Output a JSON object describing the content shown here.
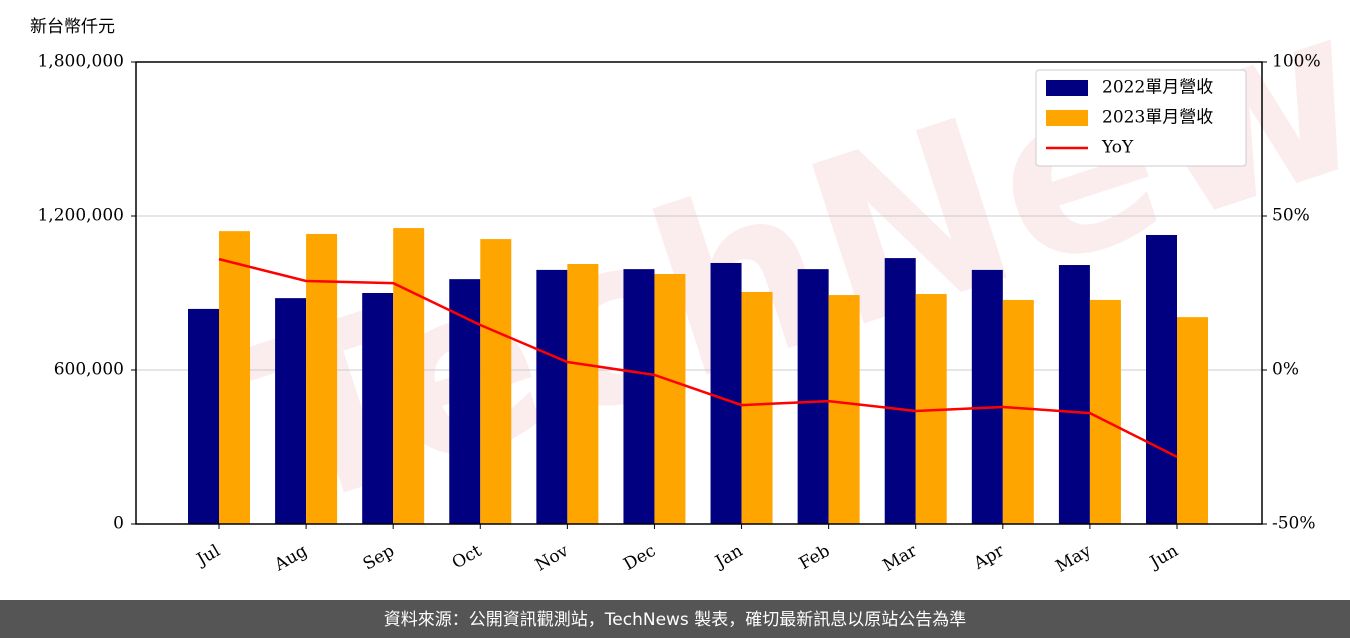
{
  "chart_data": {
    "type": "bar-line",
    "y_label": "新台幣仟元",
    "watermark": "TechNews",
    "footer": "資料來源：公開資訊觀測站，TechNews 製表，確切最新訊息以原站公告為準",
    "categories": [
      "Jul",
      "Aug",
      "Sep",
      "Oct",
      "Nov",
      "Dec",
      "Jan",
      "Feb",
      "Mar",
      "Apr",
      "May",
      "Jun"
    ],
    "series": [
      {
        "name": "2022單月營收",
        "type": "bar",
        "color": "#000080",
        "values": [
          838000,
          880000,
          900000,
          954000,
          990000,
          993000,
          1017000,
          993000,
          1036000,
          990000,
          1009000,
          1126000
        ]
      },
      {
        "name": "2023單月營收",
        "type": "bar",
        "color": "#ffa500",
        "values": [
          1141000,
          1130000,
          1153000,
          1110000,
          1013000,
          974000,
          904000,
          892000,
          896000,
          873000,
          873000,
          806000
        ]
      },
      {
        "name": "YoY",
        "type": "line",
        "axis": "y2",
        "color": "#ff0000",
        "values": [
          36.0,
          28.9,
          28.2,
          14.6,
          2.6,
          -1.6,
          -11.4,
          -10.1,
          -13.3,
          -12.0,
          -14.0,
          -28.2
        ]
      }
    ],
    "ylim": [
      0,
      1800000
    ],
    "yticks": [
      0,
      {
        "value": 600000,
        "label": "600,000"
      },
      {
        "value": 1200000,
        "label": "1,200,000"
      },
      {
        "value": 1800000,
        "label": "1,800,000"
      }
    ],
    "y2lim": [
      -50,
      100
    ],
    "y2ticks": [
      {
        "value": -50,
        "label": "-50%"
      },
      {
        "value": 0,
        "label": "0%"
      },
      {
        "value": 50,
        "label": "50%"
      },
      {
        "value": 100,
        "label": "100%"
      }
    ],
    "grid": true,
    "legend": "upper right"
  }
}
